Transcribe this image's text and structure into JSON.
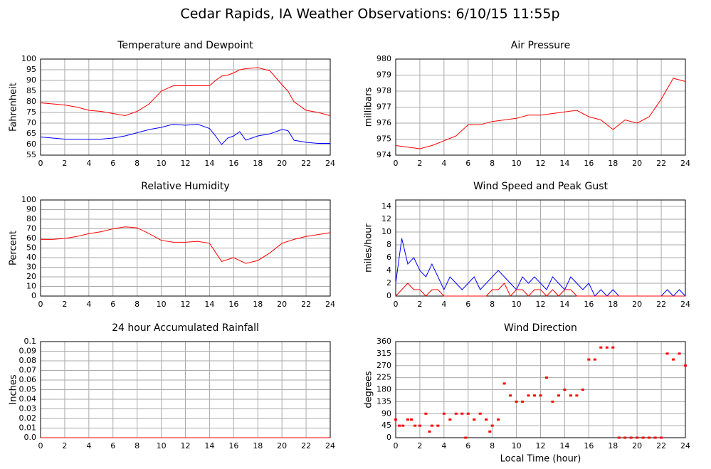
{
  "title": "Cedar Rapids, IA Weather Observations: 6/10/15 11:55p",
  "chart_data": [
    {
      "type": "line",
      "title": "Temperature and Dewpoint",
      "ylabel": "Fahrenheit",
      "x": [
        0,
        1,
        2,
        3,
        4,
        5,
        6,
        7,
        8,
        9,
        10,
        11,
        12,
        13,
        14,
        14.5,
        15,
        15.5,
        16,
        16.5,
        17,
        18,
        19,
        20,
        20.5,
        21,
        22,
        23,
        24
      ],
      "series": [
        {
          "color": "#ff0000",
          "values": [
            79.5,
            79,
            78.5,
            77.5,
            76,
            75.5,
            74.5,
            73.5,
            75.5,
            79,
            85,
            87.5,
            87.5,
            87.5,
            87.5,
            90,
            92,
            92.5,
            93.5,
            95,
            95.5,
            96,
            94.5,
            88,
            85,
            80,
            76,
            75,
            73.5
          ]
        },
        {
          "color": "#0000ff",
          "values": [
            63.5,
            63,
            62.5,
            62.5,
            62.5,
            62.5,
            63,
            64,
            65.5,
            67,
            68,
            69.5,
            69,
            69.5,
            67.5,
            64,
            60,
            63,
            64,
            66,
            62,
            64,
            65,
            67,
            66.5,
            62,
            61,
            60.5,
            60.5
          ]
        }
      ],
      "xlim": [
        0,
        24
      ],
      "xticks": [
        0,
        2,
        4,
        6,
        8,
        10,
        12,
        14,
        16,
        18,
        20,
        22,
        24
      ],
      "ylim": [
        55,
        100
      ],
      "yticks": [
        55,
        60,
        65,
        70,
        75,
        80,
        85,
        90,
        95,
        100
      ],
      "grid": true
    },
    {
      "type": "line",
      "title": "Air Pressure",
      "ylabel": "millibars",
      "x": [
        0,
        1,
        2,
        3,
        4,
        5,
        6,
        7,
        8,
        9,
        10,
        11,
        12,
        13,
        14,
        15,
        16,
        17,
        18,
        19,
        20,
        21,
        22,
        23,
        24
      ],
      "series": [
        {
          "color": "#ff0000",
          "values": [
            974.6,
            974.5,
            974.4,
            974.6,
            974.9,
            975.2,
            975.9,
            975.9,
            976.1,
            976.2,
            976.3,
            976.5,
            976.5,
            976.6,
            976.7,
            976.8,
            976.4,
            976.2,
            975.6,
            976.2,
            976.0,
            976.4,
            977.5,
            978.8,
            978.6
          ]
        }
      ],
      "xlim": [
        0,
        24
      ],
      "xticks": [
        0,
        2,
        4,
        6,
        8,
        10,
        12,
        14,
        16,
        18,
        20,
        22,
        24
      ],
      "ylim": [
        974,
        980
      ],
      "yticks": [
        974,
        975,
        976,
        977,
        978,
        979,
        980
      ],
      "grid": true
    },
    {
      "type": "line",
      "title": "Relative Humidity",
      "ylabel": "Percent",
      "x": [
        0,
        1,
        2,
        3,
        4,
        5,
        6,
        7,
        8,
        9,
        10,
        11,
        12,
        13,
        14,
        15,
        16,
        17,
        18,
        19,
        20,
        21,
        22,
        23,
        24
      ],
      "series": [
        {
          "color": "#ff0000",
          "values": [
            59,
            59,
            60,
            62,
            65,
            67,
            70,
            72,
            71,
            65,
            58,
            56,
            56,
            57,
            55,
            36,
            40,
            34,
            37,
            45,
            55,
            59,
            62,
            64,
            66
          ]
        }
      ],
      "xlim": [
        0,
        24
      ],
      "xticks": [
        0,
        2,
        4,
        6,
        8,
        10,
        12,
        14,
        16,
        18,
        20,
        22,
        24
      ],
      "ylim": [
        0,
        100
      ],
      "yticks": [
        0,
        10,
        20,
        30,
        40,
        50,
        60,
        70,
        80,
        90,
        100
      ],
      "grid": true
    },
    {
      "type": "line",
      "title": "Wind Speed and Peak Gust",
      "ylabel": "miles/hour",
      "x": [
        0,
        0.5,
        1,
        1.5,
        2,
        2.5,
        3,
        3.5,
        4,
        4.5,
        5,
        5.5,
        6,
        6.5,
        7,
        7.5,
        8,
        8.5,
        9,
        9.5,
        10,
        10.5,
        11,
        11.5,
        12,
        12.5,
        13,
        13.5,
        14,
        14.5,
        15,
        15.5,
        16,
        16.5,
        17,
        17.5,
        18,
        18.5,
        19,
        20,
        21,
        22,
        22.5,
        23,
        23.5,
        24
      ],
      "series": [
        {
          "color": "#0000ff",
          "values": [
            2,
            9,
            5,
            6,
            4,
            3,
            5,
            3,
            1,
            3,
            2,
            1,
            2,
            3,
            1,
            2,
            3,
            4,
            3,
            2,
            1,
            3,
            2,
            3,
            2,
            1,
            3,
            2,
            1,
            3,
            2,
            1,
            2,
            0,
            1,
            0,
            1,
            0,
            0,
            0,
            0,
            0,
            1,
            0,
            1,
            0
          ]
        },
        {
          "color": "#ff0000",
          "values": [
            0,
            1,
            2,
            1,
            1,
            0,
            1,
            1,
            0,
            0,
            0,
            0,
            0,
            0,
            0,
            0,
            1,
            1,
            2,
            0,
            1,
            1,
            0,
            1,
            1,
            0,
            1,
            0,
            1,
            1,
            0,
            0,
            0,
            0,
            0,
            0,
            0,
            0,
            0,
            0,
            0,
            0,
            0,
            0,
            0,
            0
          ]
        }
      ],
      "xlim": [
        0,
        24
      ],
      "xticks": [
        0,
        2,
        4,
        6,
        8,
        10,
        12,
        14,
        16,
        18,
        20,
        22,
        24
      ],
      "ylim": [
        0,
        15
      ],
      "yticks": [
        0,
        2,
        4,
        6,
        8,
        10,
        12,
        14
      ],
      "grid": true
    },
    {
      "type": "line",
      "title": "24 hour Accumulated Rainfall",
      "ylabel": "Inches",
      "x": [
        0,
        2,
        4,
        6,
        8,
        10,
        12,
        14,
        16,
        18,
        20,
        22,
        24
      ],
      "series": [
        {
          "color": "#ff0000",
          "values": [
            0,
            0,
            0,
            0,
            0,
            0,
            0,
            0,
            0,
            0,
            0,
            0,
            0
          ]
        }
      ],
      "xlim": [
        0,
        24
      ],
      "xticks": [
        0,
        2,
        4,
        6,
        8,
        10,
        12,
        14,
        16,
        18,
        20,
        22,
        24
      ],
      "ylim": [
        0,
        0.1
      ],
      "yticks": [
        {
          "value": 0,
          "label": "0.0"
        },
        0.01,
        0.02,
        0.03,
        0.04,
        0.05,
        0.06,
        0.07,
        0.08,
        0.09,
        0.1
      ],
      "grid": true
    },
    {
      "type": "scatter",
      "title": "Wind Direction",
      "ylabel": "degrees",
      "xlabel": "Local Time (hour)",
      "x": [
        0,
        0.3,
        0.6,
        1,
        1.3,
        1.6,
        2,
        2.5,
        2.8,
        3,
        3.5,
        4,
        4.5,
        5,
        5.5,
        5.8,
        6,
        6.5,
        7,
        7.5,
        7.8,
        8,
        8.5,
        9,
        9.5,
        10,
        10.5,
        11,
        11.5,
        12,
        12.5,
        13,
        13.5,
        14,
        14.5,
        15,
        15.5,
        16,
        16.5,
        17,
        17.5,
        18,
        18.5,
        19,
        19.5,
        20,
        20.5,
        21,
        21.5,
        22,
        22.5,
        23,
        23.5,
        24
      ],
      "values": [
        68,
        45,
        45,
        68,
        68,
        45,
        45,
        90,
        23,
        45,
        45,
        90,
        68,
        90,
        90,
        0,
        90,
        68,
        90,
        68,
        23,
        45,
        68,
        203,
        158,
        135,
        135,
        158,
        158,
        158,
        225,
        135,
        158,
        180,
        158,
        158,
        180,
        293,
        293,
        338,
        338,
        338,
        0,
        0,
        0,
        0,
        0,
        0,
        0,
        0,
        315,
        293,
        315,
        270
      ],
      "color": "#ff0000",
      "xlim": [
        0,
        24
      ],
      "xticks": [
        0,
        2,
        4,
        6,
        8,
        10,
        12,
        14,
        16,
        18,
        20,
        22,
        24
      ],
      "ylim": [
        0,
        360
      ],
      "yticks": [
        0,
        45,
        90,
        135,
        180,
        225,
        270,
        315,
        360
      ],
      "grid": true
    }
  ]
}
